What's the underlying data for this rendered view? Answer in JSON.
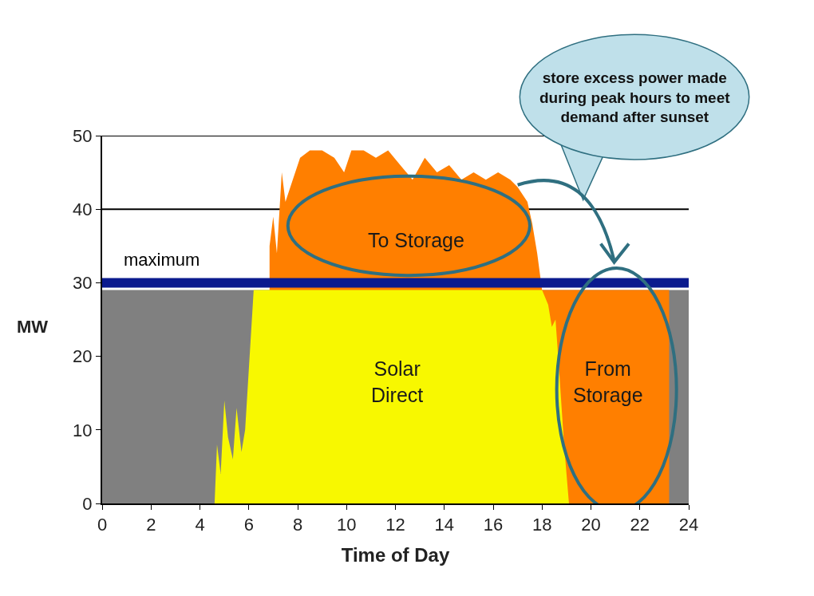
{
  "chart_data": {
    "type": "area",
    "x": [
      0,
      4.6,
      4.7,
      4.85,
      5.0,
      5.15,
      5.35,
      5.5,
      5.7,
      5.85,
      6.2,
      6.8,
      6.85,
      7.0,
      7.15,
      7.35,
      7.5,
      7.8,
      8.1,
      8.5,
      9.0,
      9.5,
      9.9,
      10.2,
      10.7,
      11.2,
      11.7,
      12.2,
      12.7,
      13.2,
      13.7,
      14.2,
      14.7,
      15.2,
      15.7,
      16.2,
      16.7,
      17.0,
      17.4,
      17.6,
      17.8,
      18.0,
      18.25,
      18.4,
      18.55,
      18.7,
      18.9,
      19.05,
      19.1,
      23.2,
      23.25,
      24
    ],
    "series": [
      {
        "color": "#808080",
        "values": [
          29,
          29,
          29,
          29,
          29,
          29,
          29,
          29,
          29,
          29,
          29,
          null,
          null,
          null,
          null,
          null,
          null,
          null,
          null,
          null,
          null,
          null,
          null,
          null,
          null,
          null,
          null,
          null,
          null,
          null,
          null,
          null,
          null,
          null,
          null,
          null,
          null,
          null,
          null,
          null,
          null,
          null,
          null,
          null,
          null,
          null,
          null,
          null,
          null,
          29,
          29,
          29
        ]
      },
      {
        "color": "#ff7f00",
        "values": [
          null,
          null,
          null,
          null,
          null,
          null,
          null,
          null,
          null,
          null,
          null,
          null,
          35,
          39,
          34,
          45,
          41,
          44,
          47,
          48,
          48,
          47,
          45,
          48,
          48,
          47,
          48,
          46,
          44,
          47,
          45,
          46,
          44,
          45,
          44,
          45,
          44,
          43,
          41,
          38,
          34,
          29,
          29,
          29,
          29,
          29,
          29,
          29,
          29,
          29,
          null,
          null
        ]
      },
      {
        "color": "#f8f800",
        "values": [
          null,
          0,
          8,
          4,
          14,
          9,
          6,
          13,
          7,
          10,
          29,
          29,
          29,
          29,
          29,
          29,
          29,
          29,
          29,
          29,
          29,
          29,
          29,
          29,
          29,
          29,
          29,
          29,
          29,
          29,
          29,
          29,
          29,
          29,
          29,
          29,
          29,
          29,
          29,
          29,
          29,
          29,
          27,
          24,
          25,
          18,
          8,
          2,
          0,
          null,
          null,
          null
        ]
      }
    ],
    "xlabel": "Time of Day",
    "ylabel": "MW",
    "xlim": [
      0,
      24
    ],
    "xticks": [
      0,
      2,
      4,
      6,
      8,
      10,
      12,
      14,
      16,
      18,
      20,
      22,
      24
    ],
    "ylim": [
      0,
      50
    ],
    "yticks": [
      0,
      10,
      20,
      30,
      40,
      50
    ],
    "ref_lines": [
      {
        "axis": "y",
        "value": 30,
        "label": "maximum",
        "color": "#0b1a8e"
      },
      {
        "axis": "y",
        "value": 40,
        "color": "#000000"
      },
      {
        "axis": "y",
        "value": 50,
        "color": "#000000"
      }
    ],
    "annotations": [
      "To Storage",
      "Solar\nDirect",
      "From\nStorage",
      "store excess power made\nduring peak hours to meet\ndemand after sunset"
    ]
  }
}
